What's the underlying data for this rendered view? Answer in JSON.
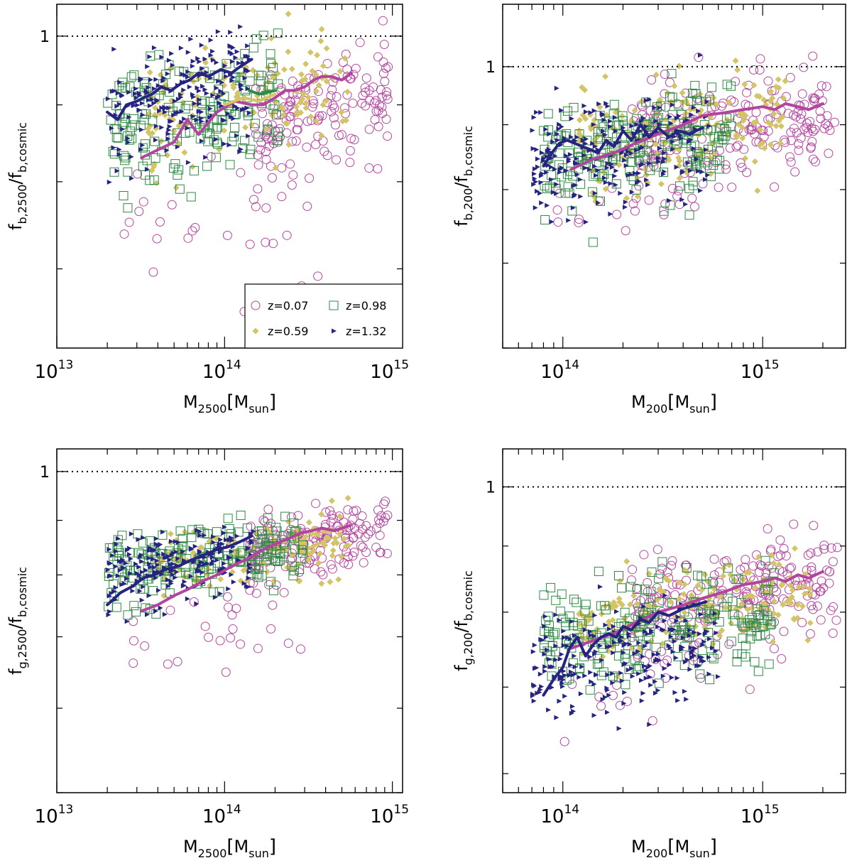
{
  "chart_data": [
    {
      "type": "scatter",
      "panel": "top-left",
      "title": "",
      "xlabel": {
        "main": "M",
        "sub": "2500",
        "bracket_main": "M",
        "bracket_sub": "sun"
      },
      "ylabel": {
        "main": "f",
        "sub": "b,2500",
        "denom_main": "f",
        "denom_sub": "b,cosmic"
      },
      "xscale": "log",
      "yscale": "log",
      "xlim": [
        10000000000000.0,
        1150000000000000.0
      ],
      "ylim": [
        0.62,
        1.05
      ],
      "x_ticks": [
        {
          "value": 10000000000000.0,
          "label": "10",
          "exp": "13"
        },
        {
          "value": 100000000000000.0,
          "label": "10",
          "exp": "14"
        },
        {
          "value": 1000000000000000.0,
          "label": "10",
          "exp": "15"
        }
      ],
      "y_ticks": [
        {
          "value": 1,
          "label": "1"
        }
      ],
      "reference_line": 1,
      "legend": {
        "location": "bottom-right",
        "entries": [
          {
            "name": "z=0.07",
            "marker": "open-circle",
            "color": "#b3449e"
          },
          {
            "name": "z=0.98",
            "marker": "open-square",
            "color": "#2f8a44"
          },
          {
            "name": "z=0.59",
            "marker": "diamond",
            "color": "#d4c468"
          },
          {
            "name": "z=1.32",
            "marker": "triangle",
            "color": "#262480"
          }
        ]
      },
      "series": [
        {
          "name": "z=0.07",
          "mean_line": {
            "x": [
              32000000000000.0,
              40000000000000.0,
              50000000000000.0,
              60000000000000.0,
              70000000000000.0,
              90000000000000.0,
              115000000000000.0,
              145000000000000.0,
              170000000000000.0,
              200000000000000.0,
              230000000000000.0,
              260000000000000.0,
              300000000000000.0,
              340000000000000.0,
              380000000000000.0,
              430000000000000.0,
              500000000000000.0,
              570000000000000.0
            ],
            "y": [
              0.83,
              0.84,
              0.85,
              0.88,
              0.86,
              0.89,
              0.905,
              0.9,
              0.9,
              0.91,
              0.92,
              0.92,
              0.925,
              0.935,
              0.94,
              0.94,
              0.935,
              0.945
            ]
          }
        },
        {
          "name": "z=0.59",
          "mean_line": {
            "x": [
              100000000000000.0,
              130000000000000.0,
              160000000000000.0,
              200000000000000.0
            ],
            "y": [
              0.9,
              0.91,
              0.905,
              0.915
            ]
          }
        },
        {
          "name": "z=0.98",
          "mean_line": {
            "x": [
              140000000000000.0,
              160000000000000.0,
              200000000000000.0
            ],
            "y": [
              0.92,
              0.915,
              0.92
            ]
          }
        },
        {
          "name": "z=1.32",
          "mean_line": {
            "x": [
              20000000000000.0,
              23000000000000.0,
              26000000000000.0,
              30000000000000.0,
              33000000000000.0,
              37000000000000.0,
              42000000000000.0,
              48000000000000.0,
              55000000000000.0,
              62000000000000.0,
              70000000000000.0,
              80000000000000.0,
              95000000000000.0,
              110000000000000.0,
              125000000000000.0,
              145000000000000.0
            ],
            "y": [
              0.89,
              0.88,
              0.9,
              0.905,
              0.91,
              0.915,
              0.925,
              0.92,
              0.93,
              0.935,
              0.945,
              0.94,
              0.95,
              0.945,
              0.955,
              0.965
            ]
          }
        }
      ]
    },
    {
      "type": "scatter",
      "panel": "top-right",
      "title": "",
      "xlabel": {
        "main": "M",
        "sub": "200",
        "bracket_main": "M",
        "bracket_sub": "sun"
      },
      "ylabel": {
        "main": "f",
        "sub": "b,200",
        "denom_main": "f",
        "denom_sub": "b,cosmic"
      },
      "xscale": "log",
      "yscale": "log",
      "xlim": [
        50000000000000.0,
        2600000000000000.0
      ],
      "ylim": [
        0.6,
        1.12
      ],
      "x_ticks": [
        {
          "value": 100000000000000.0,
          "label": "10",
          "exp": "14"
        },
        {
          "value": 1000000000000000.0,
          "label": "10",
          "exp": "15"
        }
      ],
      "y_ticks": [
        {
          "value": 1,
          "label": "1"
        }
      ],
      "reference_line": 1,
      "legend": null,
      "series": [
        {
          "name": "z=0.07",
          "mean_line": {
            "x": [
              110000000000000.0,
              140000000000000.0,
              180000000000000.0,
              230000000000000.0,
              300000000000000.0,
              400000000000000.0,
              500000000000000.0,
              650000000000000.0,
              800000000000000.0,
              1000000000000000.0,
              1150000000000000.0,
              1300000000000000.0,
              1500000000000000.0,
              1700000000000000.0,
              2000000000000000.0
            ],
            "y": [
              0.83,
              0.845,
              0.855,
              0.87,
              0.885,
              0.9,
              0.915,
              0.92,
              0.925,
              0.93,
              0.925,
              0.935,
              0.93,
              0.925,
              0.935
            ]
          }
        },
        {
          "name": "z=1.32",
          "mean_line": {
            "x": [
              80000000000000.0,
              88000000000000.0,
              96000000000000.0,
              105000000000000.0,
              115000000000000.0,
              125000000000000.0,
              138000000000000.0,
              150000000000000.0,
              165000000000000.0,
              180000000000000.0,
              200000000000000.0,
              220000000000000.0,
              245000000000000.0,
              270000000000000.0,
              300000000000000.0,
              340000000000000.0,
              380000000000000.0,
              430000000000000.0,
              500000000000000.0
            ],
            "y": [
              0.835,
              0.855,
              0.87,
              0.875,
              0.87,
              0.865,
              0.86,
              0.855,
              0.875,
              0.865,
              0.89,
              0.875,
              0.9,
              0.88,
              0.895,
              0.88,
              0.89,
              0.885,
              0.895
            ]
          }
        }
      ]
    },
    {
      "type": "scatter",
      "panel": "bottom-left",
      "title": "",
      "xlabel": {
        "main": "M",
        "sub": "2500",
        "bracket_main": "M",
        "bracket_sub": "sun"
      },
      "ylabel": {
        "main": "f",
        "sub": "g,2500",
        "denom_main": "f",
        "denom_sub": "b,cosmic"
      },
      "xscale": "log",
      "yscale": "log",
      "xlim": [
        10000000000000.0,
        1150000000000000.0
      ],
      "ylim": [
        0.5,
        1.05
      ],
      "x_ticks": [
        {
          "value": 10000000000000.0,
          "label": "10",
          "exp": "13"
        },
        {
          "value": 100000000000000.0,
          "label": "10",
          "exp": "14"
        },
        {
          "value": 1000000000000000.0,
          "label": "10",
          "exp": "15"
        }
      ],
      "y_ticks": [
        {
          "value": 1,
          "label": "1"
        }
      ],
      "reference_line": 1,
      "legend": null,
      "series": [
        {
          "name": "z=0.07",
          "mean_line": {
            "x": [
              32000000000000.0,
              40000000000000.0,
              50000000000000.0,
              60000000000000.0,
              75000000000000.0,
              90000000000000.0,
              110000000000000.0,
              140000000000000.0,
              170000000000000.0,
              200000000000000.0,
              240000000000000.0,
              280000000000000.0,
              330000000000000.0,
              380000000000000.0,
              450000000000000.0,
              560000000000000.0
            ],
            "y": [
              0.74,
              0.75,
              0.765,
              0.775,
              0.79,
              0.8,
              0.815,
              0.83,
              0.845,
              0.855,
              0.865,
              0.875,
              0.88,
              0.885,
              0.88,
              0.89
            ]
          }
        },
        {
          "name": "z=1.32",
          "mean_line": {
            "x": [
              20000000000000.0,
              24000000000000.0,
              28000000000000.0,
              33000000000000.0,
              38000000000000.0,
              45000000000000.0,
              53000000000000.0,
              62000000000000.0,
              75000000000000.0,
              90000000000000.0,
              105000000000000.0,
              125000000000000.0,
              145000000000000.0
            ],
            "y": [
              0.75,
              0.77,
              0.78,
              0.795,
              0.8,
              0.81,
              0.815,
              0.825,
              0.835,
              0.845,
              0.85,
              0.86,
              0.87
            ]
          }
        }
      ]
    },
    {
      "type": "scatter",
      "panel": "bottom-right",
      "title": "",
      "xlabel": {
        "main": "M",
        "sub": "200",
        "bracket_main": "M",
        "bracket_sub": "sun"
      },
      "ylabel": {
        "main": "f",
        "sub": "g,200",
        "denom_main": "f",
        "denom_sub": "b,cosmic"
      },
      "xscale": "log",
      "yscale": "log",
      "xlim": [
        50000000000000.0,
        2600000000000000.0
      ],
      "ylim": [
        0.58,
        1.07
      ],
      "x_ticks": [
        {
          "value": 100000000000000.0,
          "label": "10",
          "exp": "14"
        },
        {
          "value": 1000000000000000.0,
          "label": "10",
          "exp": "15"
        }
      ],
      "y_ticks": [
        {
          "value": 1,
          "label": "1"
        }
      ],
      "reference_line": 1,
      "legend": null,
      "series": [
        {
          "name": "z=0.07",
          "mean_line": {
            "x": [
              110000000000000.0,
              140000000000000.0,
              180000000000000.0,
              230000000000000.0,
              300000000000000.0,
              400000000000000.0,
              500000000000000.0,
              650000000000000.0,
              800000000000000.0,
              1000000000000000.0,
              1150000000000000.0,
              1300000000000000.0,
              1500000000000000.0,
              1700000000000000.0,
              2000000000000000.0
            ],
            "y": [
              0.75,
              0.76,
              0.77,
              0.785,
              0.8,
              0.81,
              0.82,
              0.83,
              0.84,
              0.845,
              0.85,
              0.845,
              0.855,
              0.85,
              0.86
            ]
          }
        },
        {
          "name": "z=1.32",
          "mean_line": {
            "x": [
              80000000000000.0,
              90000000000000.0,
              100000000000000.0,
              108000000000000.0,
              118000000000000.0,
              130000000000000.0,
              142000000000000.0,
              155000000000000.0,
              170000000000000.0,
              185000000000000.0,
              200000000000000.0,
              220000000000000.0,
              245000000000000.0,
              270000000000000.0,
              300000000000000.0,
              340000000000000.0,
              400000000000000.0,
              460000000000000.0,
              520000000000000.0
            ],
            "y": [
              0.69,
              0.71,
              0.725,
              0.75,
              0.765,
              0.74,
              0.755,
              0.765,
              0.77,
              0.765,
              0.78,
              0.775,
              0.79,
              0.785,
              0.8,
              0.795,
              0.805,
              0.81,
              0.815
            ]
          }
        }
      ]
    }
  ]
}
